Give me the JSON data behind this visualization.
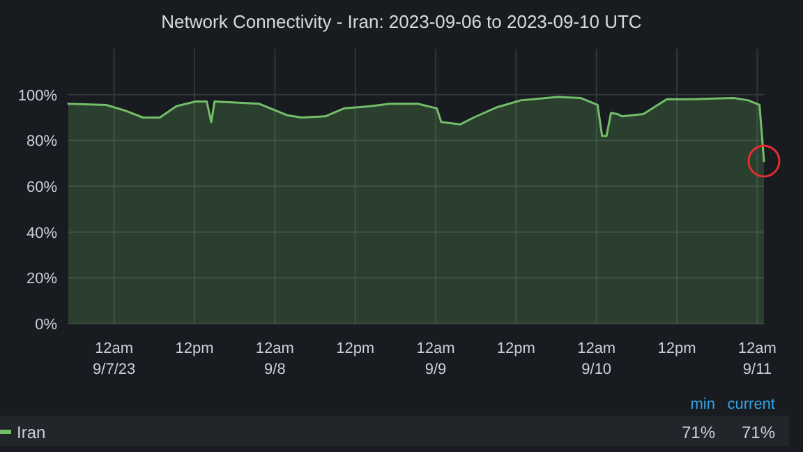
{
  "chart_data": {
    "type": "area",
    "title": "Network Connectivity - Iran: 2023-09-06 to 2023-09-10 UTC",
    "x": [
      "2023-09-06T17:10",
      "2023-09-06T22:50",
      "2023-09-07T01:40",
      "2023-09-07T04:20",
      "2023-09-07T06:50",
      "2023-09-07T09:20",
      "2023-09-07T12:10",
      "2023-09-07T13:50",
      "2023-09-07T14:30",
      "2023-09-07T15:00",
      "2023-09-07T18:40",
      "2023-09-07T21:40",
      "2023-09-08T01:50",
      "2023-09-08T04:00",
      "2023-09-08T07:30",
      "2023-09-08T10:20",
      "2023-09-08T14:30",
      "2023-09-08T17:10",
      "2023-09-08T21:20",
      "2023-09-09T00:10",
      "2023-09-09T00:50",
      "2023-09-09T03:40",
      "2023-09-09T05:40",
      "2023-09-09T09:10",
      "2023-09-09T12:40",
      "2023-09-09T18:10",
      "2023-09-09T21:40",
      "2023-09-10T00:10",
      "2023-09-10T00:50",
      "2023-09-10T01:30",
      "2023-09-10T02:10",
      "2023-09-10T03:10",
      "2023-09-10T03:50",
      "2023-09-10T07:00",
      "2023-09-10T10:30",
      "2023-09-10T14:20",
      "2023-09-10T20:30",
      "2023-09-10T22:40",
      "2023-09-11T00:20",
      "2023-09-11T01:00"
    ],
    "series": [
      {
        "name": "Iran",
        "color": "#73bf69",
        "values": [
          96,
          95.5,
          93,
          90,
          90,
          95,
          97,
          97,
          88,
          97,
          96.5,
          96,
          91,
          90,
          90.5,
          94,
          95,
          96,
          96,
          94,
          88,
          87,
          90,
          94.5,
          97.5,
          99,
          98.5,
          95.5,
          82,
          82,
          92,
          91.5,
          90.5,
          91.5,
          98,
          98,
          98.5,
          97.5,
          95.5,
          71
        ]
      }
    ],
    "xlim": [
      "2023-09-06T17:10",
      "2023-09-11T01:00"
    ],
    "xticks": [
      {
        "value": "2023-09-07T00:00",
        "label": "12am\n9/7/23"
      },
      {
        "value": "2023-09-07T12:00",
        "label": "12pm"
      },
      {
        "value": "2023-09-08T00:00",
        "label": "12am\n9/8"
      },
      {
        "value": "2023-09-08T12:00",
        "label": "12pm"
      },
      {
        "value": "2023-09-09T00:00",
        "label": "12am\n9/9"
      },
      {
        "value": "2023-09-09T12:00",
        "label": "12pm"
      },
      {
        "value": "2023-09-10T00:00",
        "label": "12am\n9/10"
      },
      {
        "value": "2023-09-10T12:00",
        "label": "12pm"
      },
      {
        "value": "2023-09-11T00:00",
        "label": "12am\n9/11"
      }
    ],
    "ylim": [
      0,
      120
    ],
    "yticks": [
      {
        "value": 0,
        "label": "0%"
      },
      {
        "value": 20,
        "label": "20%"
      },
      {
        "value": 40,
        "label": "40%"
      },
      {
        "value": 60,
        "label": "60%"
      },
      {
        "value": 80,
        "label": "80%"
      },
      {
        "value": 100,
        "label": "100%"
      }
    ],
    "grid": true,
    "legend": "bottom left",
    "annotations": [
      "min",
      "current",
      "71%",
      "71%"
    ]
  }
}
